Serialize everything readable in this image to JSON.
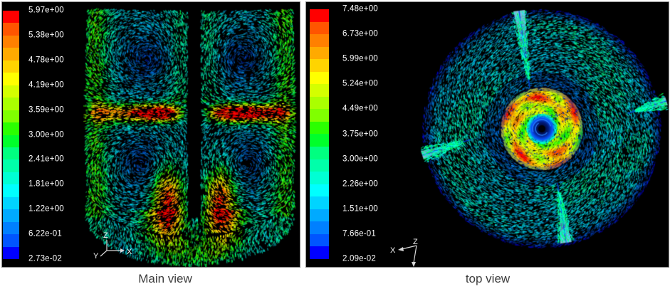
{
  "figure": {
    "background": "#ffffff",
    "panel_background": "#000000",
    "panel_border": "#8c8c8c",
    "legend_text_color": "#ffffff",
    "caption_text_color": "#3d3d3d",
    "colormap_top_to_bottom": [
      "#ff0000",
      "#ff5500",
      "#ff8000",
      "#ffaa00",
      "#ffd400",
      "#ffff00",
      "#d4ff00",
      "#aaff00",
      "#80ff00",
      "#2bff00",
      "#00ff2b",
      "#00ff80",
      "#00ffaa",
      "#00ffd4",
      "#00ffff",
      "#00d4ff",
      "#00aaff",
      "#0080ff",
      "#0055ff",
      "#0000ff"
    ],
    "panels": [
      {
        "name": "main-view",
        "caption": "Main view",
        "legend_labels": [
          "5.97e+00",
          "5.38e+00",
          "4.78e+00",
          "4.19e+00",
          "3.59e+00",
          "3.00e+00",
          "2.41e+00",
          "1.81e+00",
          "1.22e+00",
          "6.22e-01",
          "2.73e-02"
        ],
        "triad": {
          "up": "Z",
          "down_left": "Y",
          "right": "X"
        }
      },
      {
        "name": "top-view",
        "caption": "top view",
        "legend_labels": [
          "7.48e+00",
          "6.73e+00",
          "5.99e+00",
          "5.24e+00",
          "4.49e+00",
          "3.75e+00",
          "3.00e+00",
          "2.26e+00",
          "1.51e+00",
          "7.66e-01",
          "2.09e-02"
        ],
        "triad": {
          "left": "X",
          "origin": "Z"
        }
      }
    ]
  },
  "chart_data": [
    {
      "type": "heatmap",
      "subtype": "cfd-vector-field",
      "title": "Main view",
      "view": "side elevation of stirred tank: central shaft, radial impeller jet at mid-height, recirculation vortices above and below, dished bottom",
      "quantity": "velocity magnitude (colored vectors)",
      "legend_position": "left",
      "legend_ticks": [
        5.97,
        5.38,
        4.78,
        4.19,
        3.59,
        3.0,
        2.41,
        1.81,
        1.22,
        0.622,
        0.0273
      ],
      "range": [
        0.0273,
        5.97
      ],
      "colormap": "20-band rainbow, red = max (top), blue = min (bottom)",
      "axis_triad": [
        "Z up",
        "Y down-left",
        "X right"
      ],
      "features": [
        "red/orange jet cores either side of shaft at impeller height",
        "green jet tips reaching tank walls",
        "cyan high-velocity bands along both walls",
        "two yellow-green plumes beside lower shaft",
        "dark vortex cores in the four recirculation zones"
      ]
    },
    {
      "type": "heatmap",
      "subtype": "cfd-vector-field",
      "title": "top view",
      "view": "plan view of stirred tank: swirling annular flow, green/yellow impeller disk at center with dark blue vortex eye, four bright baffle streaks",
      "quantity": "velocity magnitude (colored vectors)",
      "legend_position": "left",
      "legend_ticks": [
        7.48,
        6.73,
        5.99,
        5.24,
        4.49,
        3.75,
        3.0,
        2.26,
        1.51,
        0.766,
        0.0209
      ],
      "range": [
        0.0209,
        7.48
      ],
      "colormap": "20-band rainbow, red = max (top), blue = min (bottom)",
      "axis_triad": [
        "X left",
        "Z origin",
        "arrow down"
      ],
      "features": [
        "central impeller disk: green swirl with yellow-orange rim lobes and red specks",
        "dark navy vortex eye with blue ring at exact center",
        "cyan/blue tangential vectors filling the circular vessel",
        "four bright cyan baffle streaks at roughly 90-degree spacing"
      ]
    }
  ]
}
